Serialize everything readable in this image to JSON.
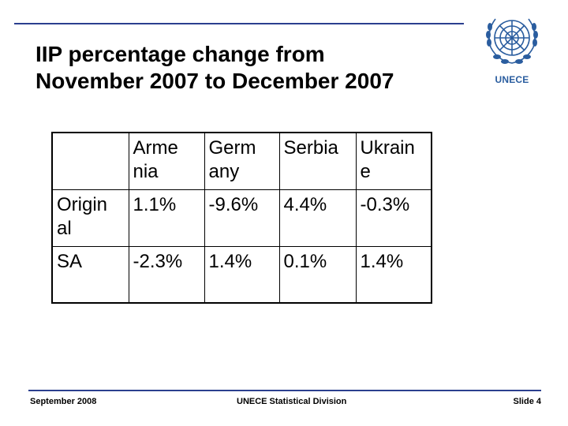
{
  "title": {
    "line1": "IIP percentage change from",
    "line2": "November 2007 to December 2007"
  },
  "logo": {
    "label": "UNECE"
  },
  "table": {
    "header": [
      "",
      "Arme\nnia",
      "Germ\nany",
      "Serbia",
      "Ukrain\ne"
    ],
    "rows": [
      [
        "Origin\nal",
        "1.1%",
        "-9.6%",
        "4.4%",
        "-0.3%"
      ],
      [
        "SA",
        "-2.3%",
        "1.4%",
        "0.1%",
        "1.4%"
      ]
    ]
  },
  "footer": {
    "date": "September 2008",
    "division": "UNECE Statistical Division",
    "slide": "Slide 4"
  },
  "colors": {
    "rule": "#2b3f8f",
    "logo": "#2a5d9f"
  }
}
